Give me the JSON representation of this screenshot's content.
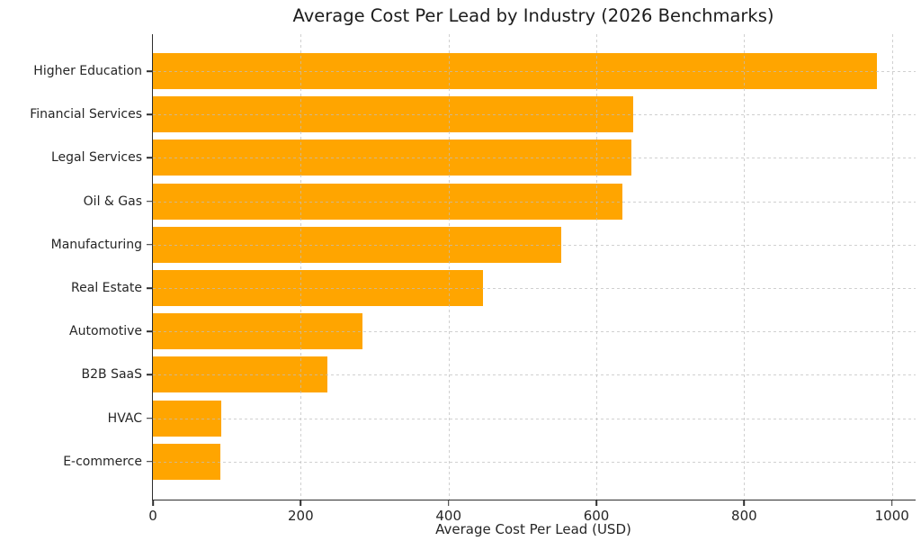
{
  "chart_data": {
    "type": "bar",
    "orientation": "horizontal",
    "title": "Average Cost Per Lead by Industry (2026 Benchmarks)",
    "xlabel": "Average Cost Per Lead (USD)",
    "ylabel": "",
    "categories": [
      "Higher Education",
      "Financial Services",
      "Legal Services",
      "Oil & Gas",
      "Manufacturing",
      "Real Estate",
      "Automotive",
      "B2B SaaS",
      "HVAC",
      "E-commerce"
    ],
    "values": [
      980,
      650,
      648,
      635,
      552,
      447,
      283,
      236,
      93,
      91
    ],
    "xticks": [
      0,
      200,
      400,
      600,
      800,
      1000
    ],
    "xlim": [
      0,
      1032
    ],
    "bar_color": "#FFA500",
    "grid": "dashed light-gray gridlines on both axes, drawn over bars",
    "legend": "none",
    "spines": "left and bottom only"
  }
}
